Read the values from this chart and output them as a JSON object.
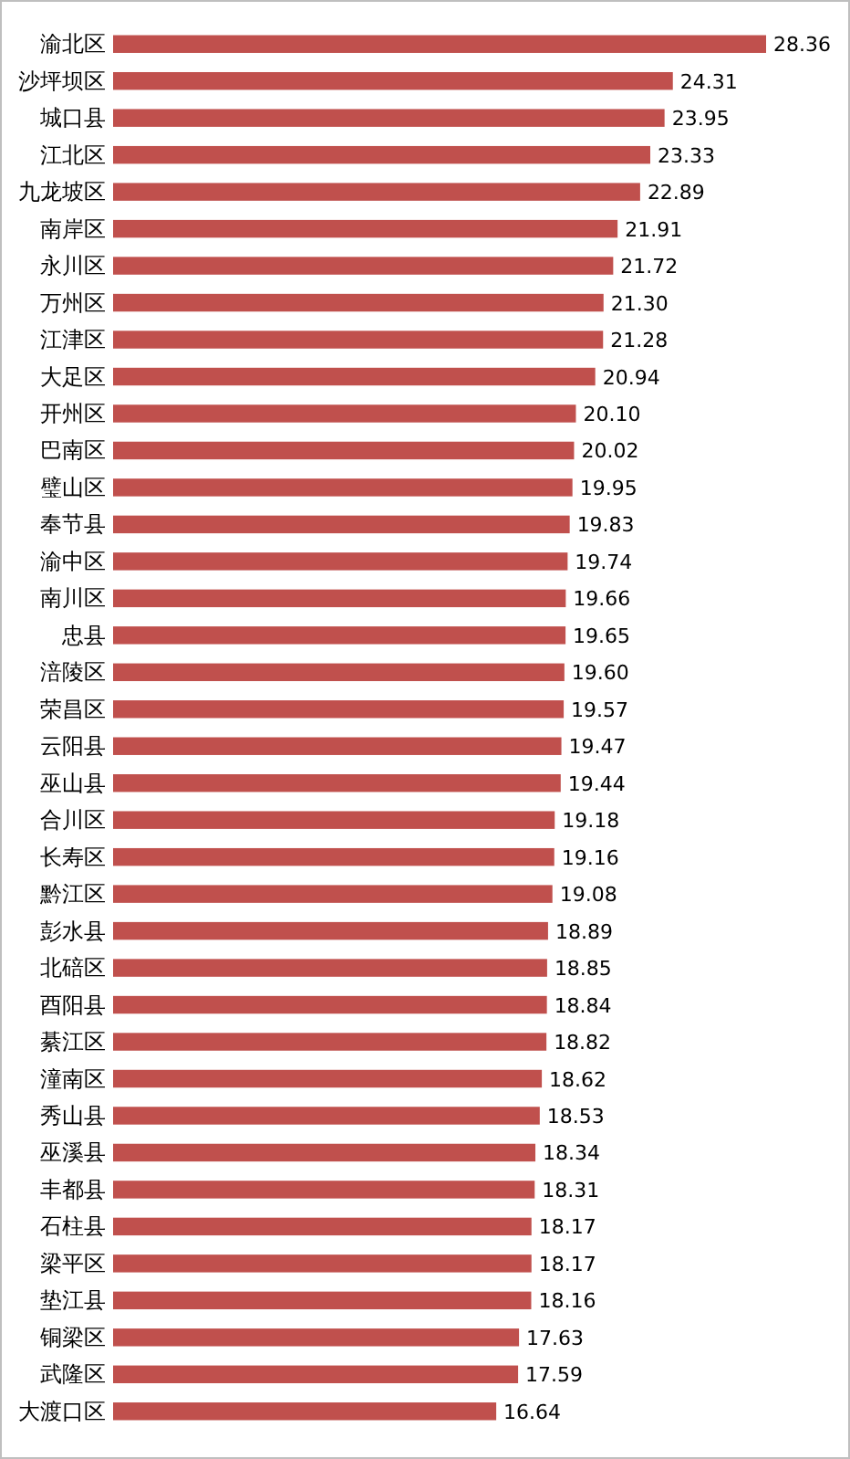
{
  "chart_data": {
    "type": "bar",
    "orientation": "horizontal",
    "color": "#c0504d",
    "categories": [
      "渝北区",
      "沙坪坝区",
      "城口县",
      "江北区",
      "九龙坡区",
      "南岸区",
      "永川区",
      "万州区",
      "江津区",
      "大足区",
      "开州区",
      "巴南区",
      "璧山区",
      "奉节县",
      "渝中区",
      "南川区",
      "忠县",
      "涪陵区",
      "荣昌区",
      "云阳县",
      "巫山县",
      "合川区",
      "长寿区",
      "黔江区",
      "彭水县",
      "北碚区",
      "酉阳县",
      "綦江区",
      "潼南区",
      "秀山县",
      "巫溪县",
      "丰都县",
      "石柱县",
      "梁平区",
      "垫江县",
      "铜梁区",
      "武隆区",
      "大渡口区"
    ],
    "values": [
      28.36,
      24.31,
      23.95,
      23.33,
      22.89,
      21.91,
      21.72,
      21.3,
      21.28,
      20.94,
      20.1,
      20.02,
      19.95,
      19.83,
      19.74,
      19.66,
      19.65,
      19.6,
      19.57,
      19.47,
      19.44,
      19.18,
      19.16,
      19.08,
      18.89,
      18.85,
      18.84,
      18.82,
      18.62,
      18.53,
      18.34,
      18.31,
      18.17,
      18.17,
      18.16,
      17.63,
      17.59,
      16.64
    ],
    "value_labels": [
      "28.36",
      "24.31",
      "23.95",
      "23.33",
      "22.89",
      "21.91",
      "21.72",
      "21.30",
      "21.28",
      "20.94",
      "20.10",
      "20.02",
      "19.95",
      "19.83",
      "19.74",
      "19.66",
      "19.65",
      "19.60",
      "19.57",
      "19.47",
      "19.44",
      "19.18",
      "19.16",
      "19.08",
      "18.89",
      "18.85",
      "18.84",
      "18.82",
      "18.62",
      "18.53",
      "18.34",
      "18.31",
      "18.17",
      "18.17",
      "18.16",
      "17.63",
      "17.59",
      "16.64"
    ]
  }
}
